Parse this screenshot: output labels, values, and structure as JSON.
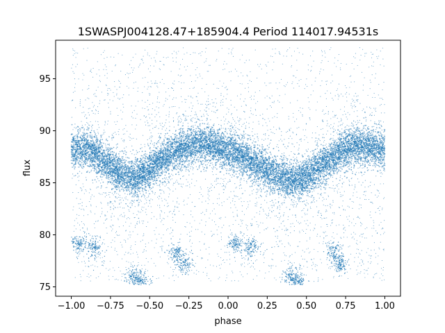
{
  "chart_data": {
    "type": "scatter",
    "title": "1SWASPJ004128.47+185904.4 Period 114017.94531s",
    "xlabel": "phase",
    "ylabel": "flux",
    "xlim": [
      -1.1,
      1.1
    ],
    "ylim": [
      74.1,
      98.7
    ],
    "x_ticks": [
      -1.0,
      -0.75,
      -0.5,
      -0.25,
      0.0,
      0.25,
      0.5,
      0.75,
      1.0
    ],
    "x_tick_labels": [
      "−1.00",
      "−0.75",
      "−0.50",
      "−0.25",
      "0.00",
      "0.25",
      "0.50",
      "0.75",
      "1.00"
    ],
    "y_ticks": [
      75,
      80,
      85,
      90,
      95
    ],
    "y_tick_labels": [
      "75",
      "80",
      "85",
      "90",
      "95"
    ],
    "grid": false,
    "point_color": "#1f77b4",
    "series": [
      {
        "x": [
          -1.0,
          -0.9,
          -0.8,
          -0.7,
          -0.6,
          -0.5,
          -0.4,
          -0.3,
          -0.2,
          -0.1,
          0.0,
          0.1,
          0.2,
          0.3,
          0.4,
          0.5,
          0.6,
          0.7,
          0.8,
          0.9,
          1.0
        ],
        "y": [
          88.2,
          88.3,
          87.2,
          86.0,
          85.4,
          86.3,
          87.4,
          88.3,
          88.8,
          88.6,
          88.1,
          87.5,
          86.6,
          85.8,
          85.2,
          85.6,
          86.6,
          87.7,
          88.6,
          88.4,
          88.2
        ]
      }
    ],
    "outlier_clusters": [
      {
        "x": -0.95,
        "y": 79.1
      },
      {
        "x": -0.85,
        "y": 78.8
      },
      {
        "x": -0.6,
        "y": 76.0
      },
      {
        "x": -0.55,
        "y": 75.5
      },
      {
        "x": -0.33,
        "y": 78.3
      },
      {
        "x": -0.28,
        "y": 77.2
      },
      {
        "x": 0.05,
        "y": 79.1
      },
      {
        "x": 0.15,
        "y": 78.8
      },
      {
        "x": 0.4,
        "y": 76.0
      },
      {
        "x": 0.45,
        "y": 75.5
      },
      {
        "x": 0.67,
        "y": 78.3
      },
      {
        "x": 0.72,
        "y": 77.2
      }
    ]
  }
}
